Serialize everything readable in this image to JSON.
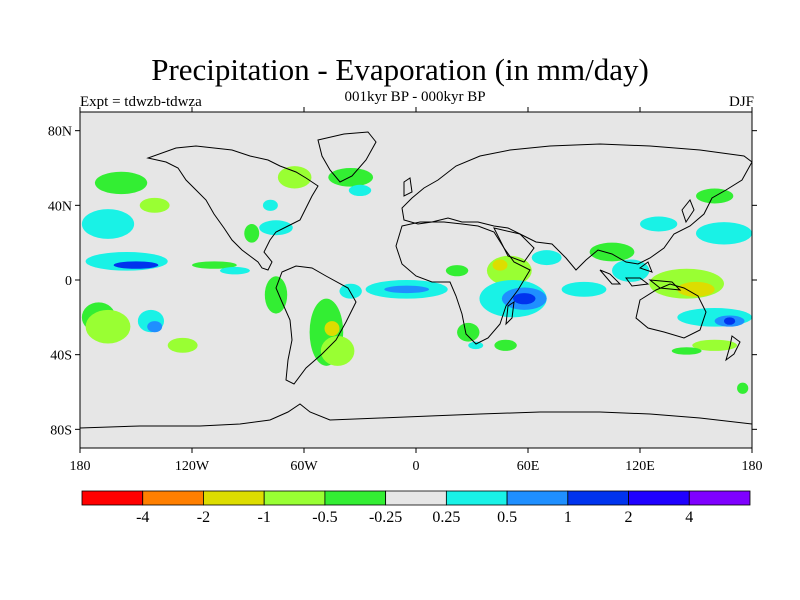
{
  "title": "Precipitation - Evaporation (in mm/day)",
  "subtitle": "001kyr BP - 000kyr BP",
  "experiment": "Expt = tdwzb-tdwza",
  "season": "DJF",
  "colors": {
    "background": "#e6e6e6",
    "coast": "#000000",
    "strong_wet": "#0033ee",
    "wet": "#1f8fff",
    "mild_wet": "#19f2e6",
    "mild_dry": "#33ee33",
    "dry": "#99ff33",
    "strong_dry": "#dddd00"
  },
  "map": {
    "projection": "equirectangular",
    "lon_range": [
      -180,
      180
    ],
    "lat_range": [
      -90,
      90
    ],
    "lat_labels": [
      {
        "lat": 80,
        "text": "80N"
      },
      {
        "lat": 40,
        "text": "40N"
      },
      {
        "lat": 0,
        "text": "0"
      },
      {
        "lat": -40,
        "text": "40S"
      },
      {
        "lat": -80,
        "text": "80S"
      }
    ],
    "lon_labels": [
      {
        "lon": -180,
        "text": "180"
      },
      {
        "lon": -120,
        "text": "120W"
      },
      {
        "lon": -60,
        "text": "60W"
      },
      {
        "lon": 0,
        "text": "0"
      },
      {
        "lon": 60,
        "text": "60E"
      },
      {
        "lon": 120,
        "text": "120E"
      },
      {
        "lon": 180,
        "text": "180"
      }
    ],
    "anomaly_regions": [
      {
        "level": "mild_wet",
        "lon": -165,
        "lat": 30,
        "rlon": 14,
        "rlat": 8
      },
      {
        "level": "mild_dry",
        "lon": -158,
        "lat": 52,
        "rlon": 14,
        "rlat": 6
      },
      {
        "level": "dry",
        "lon": -140,
        "lat": 40,
        "rlon": 8,
        "rlat": 4
      },
      {
        "level": "mild_wet",
        "lon": -155,
        "lat": 10,
        "rlon": 22,
        "rlat": 5
      },
      {
        "level": "strong_wet",
        "lon": -150,
        "lat": 8,
        "rlon": 12,
        "rlat": 2
      },
      {
        "level": "mild_dry",
        "lon": -170,
        "lat": -20,
        "rlon": 9,
        "rlat": 8
      },
      {
        "level": "dry",
        "lon": -165,
        "lat": -25,
        "rlon": 12,
        "rlat": 9
      },
      {
        "level": "mild_wet",
        "lon": -142,
        "lat": -22,
        "rlon": 7,
        "rlat": 6
      },
      {
        "level": "wet",
        "lon": -140,
        "lat": -25,
        "rlon": 4,
        "rlat": 3
      },
      {
        "level": "dry",
        "lon": -125,
        "lat": -35,
        "rlon": 8,
        "rlat": 4
      },
      {
        "level": "mild_dry",
        "lon": -108,
        "lat": 8,
        "rlon": 12,
        "rlat": 2
      },
      {
        "level": "mild_wet",
        "lon": -97,
        "lat": 5,
        "rlon": 8,
        "rlat": 2
      },
      {
        "level": "mild_dry",
        "lon": -88,
        "lat": 25,
        "rlon": 4,
        "rlat": 5
      },
      {
        "level": "mild_wet",
        "lon": -75,
        "lat": 28,
        "rlon": 9,
        "rlat": 4
      },
      {
        "level": "dry",
        "lon": -65,
        "lat": 55,
        "rlon": 9,
        "rlat": 6
      },
      {
        "level": "mild_wet",
        "lon": -78,
        "lat": 40,
        "rlon": 4,
        "rlat": 3
      },
      {
        "level": "mild_dry",
        "lon": -35,
        "lat": 55,
        "rlon": 12,
        "rlat": 5
      },
      {
        "level": "mild_wet",
        "lon": -30,
        "lat": 48,
        "rlon": 6,
        "rlat": 3
      },
      {
        "level": "mild_dry",
        "lon": -75,
        "lat": -8,
        "rlon": 6,
        "rlat": 10
      },
      {
        "level": "mild_dry",
        "lon": -48,
        "lat": -28,
        "rlon": 9,
        "rlat": 18
      },
      {
        "level": "dry",
        "lon": -42,
        "lat": -38,
        "rlon": 9,
        "rlat": 8
      },
      {
        "level": "strong_dry",
        "lon": -45,
        "lat": -26,
        "rlon": 4,
        "rlat": 4
      },
      {
        "level": "mild_wet",
        "lon": -35,
        "lat": -6,
        "rlon": 6,
        "rlat": 4
      },
      {
        "level": "mild_wet",
        "lon": -5,
        "lat": -5,
        "rlon": 22,
        "rlat": 5
      },
      {
        "level": "wet",
        "lon": -5,
        "lat": -5,
        "rlon": 12,
        "rlat": 2
      },
      {
        "level": "mild_dry",
        "lon": 22,
        "lat": 5,
        "rlon": 6,
        "rlat": 3
      },
      {
        "level": "mild_dry",
        "lon": 28,
        "lat": -28,
        "rlon": 6,
        "rlat": 5
      },
      {
        "level": "mild_wet",
        "lon": 32,
        "lat": -35,
        "rlon": 4,
        "rlat": 2
      },
      {
        "level": "dry",
        "lon": 50,
        "lat": 5,
        "rlon": 12,
        "rlat": 8
      },
      {
        "level": "strong_dry",
        "lon": 45,
        "lat": 8,
        "rlon": 4,
        "rlat": 3
      },
      {
        "level": "mild_wet",
        "lon": 52,
        "lat": -10,
        "rlon": 18,
        "rlat": 10
      },
      {
        "level": "wet",
        "lon": 58,
        "lat": -10,
        "rlon": 12,
        "rlat": 6
      },
      {
        "level": "strong_wet",
        "lon": 58,
        "lat": -10,
        "rlon": 6,
        "rlat": 3
      },
      {
        "level": "mild_wet",
        "lon": 90,
        "lat": -5,
        "rlon": 12,
        "rlat": 4
      },
      {
        "level": "mild_dry",
        "lon": 48,
        "lat": -35,
        "rlon": 6,
        "rlat": 3
      },
      {
        "level": "mild_wet",
        "lon": 70,
        "lat": 12,
        "rlon": 8,
        "rlat": 4
      },
      {
        "level": "mild_dry",
        "lon": 105,
        "lat": 15,
        "rlon": 12,
        "rlat": 5
      },
      {
        "level": "mild_wet",
        "lon": 115,
        "lat": 5,
        "rlon": 10,
        "rlat": 6
      },
      {
        "level": "dry",
        "lon": 145,
        "lat": -2,
        "rlon": 20,
        "rlat": 8
      },
      {
        "level": "strong_dry",
        "lon": 150,
        "lat": -5,
        "rlon": 10,
        "rlat": 4
      },
      {
        "level": "mild_wet",
        "lon": 130,
        "lat": 30,
        "rlon": 10,
        "rlat": 4
      },
      {
        "level": "mild_wet",
        "lon": 165,
        "lat": 25,
        "rlon": 15,
        "rlat": 6
      },
      {
        "level": "mild_dry",
        "lon": 160,
        "lat": 45,
        "rlon": 10,
        "rlat": 4
      },
      {
        "level": "mild_wet",
        "lon": 160,
        "lat": -20,
        "rlon": 20,
        "rlat": 5
      },
      {
        "level": "wet",
        "lon": 168,
        "lat": -22,
        "rlon": 8,
        "rlat": 3
      },
      {
        "level": "strong_wet",
        "lon": 168,
        "lat": -22,
        "rlon": 3,
        "rlat": 2
      },
      {
        "level": "dry",
        "lon": 160,
        "lat": -35,
        "rlon": 12,
        "rlat": 3
      },
      {
        "level": "mild_dry",
        "lon": 145,
        "lat": -38,
        "rlon": 8,
        "rlat": 2
      },
      {
        "level": "mild_dry",
        "lon": 175,
        "lat": -58,
        "rlon": 3,
        "rlat": 3
      }
    ]
  },
  "colorbar": {
    "boxes": [
      "#ff0000",
      "#ff7f00",
      "#dddd00",
      "#99ff33",
      "#33ee33",
      "#e6e6e6",
      "#19f2e6",
      "#1f8fff",
      "#0033ee",
      "#1f00ff",
      "#7f00ff"
    ],
    "labels": [
      "-4",
      "-2",
      "-1",
      "-0.5",
      "-0.25",
      "0.25",
      "0.5",
      "1",
      "2",
      "4"
    ]
  }
}
